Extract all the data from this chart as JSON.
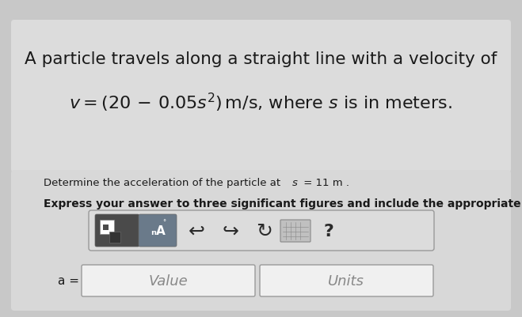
{
  "bg_color": "#c8c8c8",
  "top_panel_color": "#dcdcdc",
  "bottom_panel_color": "#d8d8d8",
  "title_line1": "A particle travels along a straight line with a velocity of",
  "title_fontsize": 15.5,
  "subtitle1_fontsize": 9.5,
  "subtitle2_fontsize": 10.0,
  "label_a": "a =",
  "placeholder_value": "Value",
  "placeholder_units": "Units",
  "box_border_color": "#999999",
  "text_color": "#1a1a1a",
  "panel_border_color": "#bbbbbb"
}
